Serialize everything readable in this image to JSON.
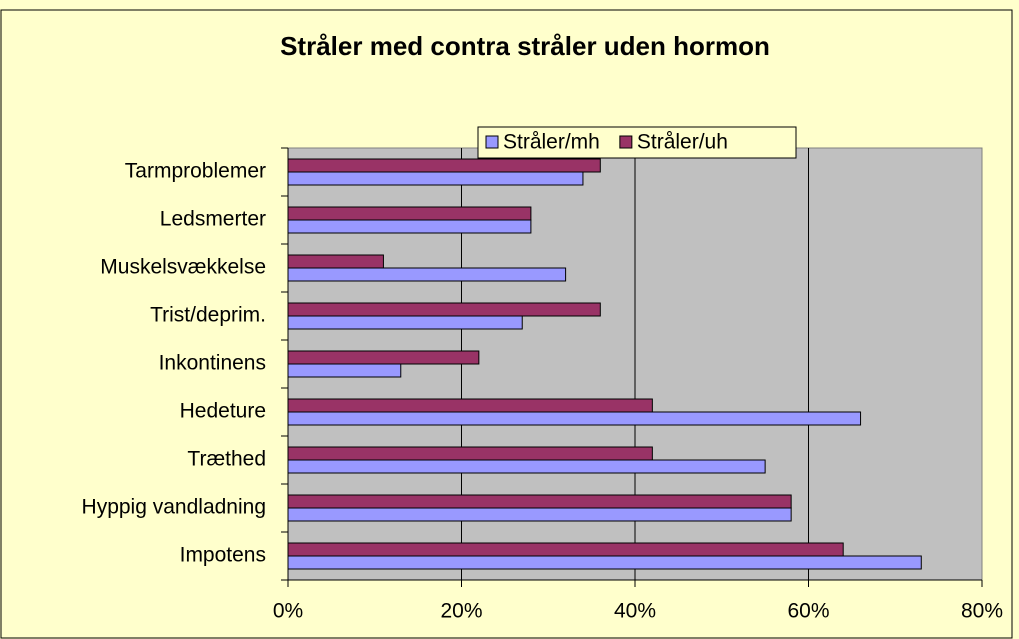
{
  "chart_data": {
    "type": "bar",
    "orientation": "horizontal",
    "title": "Stråler med contra stråler uden hormon",
    "categories": [
      "Tarmproblemer",
      "Ledsmerter",
      "Muskelsvækkelse",
      "Trist/deprim.",
      "Inkontinens",
      "Hedeture",
      "Træthed",
      "Hyppig vandladning",
      "Impotens"
    ],
    "series": [
      {
        "name": "Stråler/mh",
        "color": "#9999ff",
        "values": [
          34,
          28,
          32,
          27,
          13,
          66,
          55,
          58,
          73
        ]
      },
      {
        "name": "Stråler/uh",
        "color": "#993366",
        "values": [
          36,
          28,
          11,
          36,
          22,
          42,
          42,
          58,
          64
        ]
      }
    ],
    "xlim": [
      0,
      80
    ],
    "xticks": [
      {
        "value": 0,
        "label": "0%"
      },
      {
        "value": 20,
        "label": "20%"
      },
      {
        "value": 40,
        "label": "40%"
      },
      {
        "value": 60,
        "label": "60%"
      },
      {
        "value": 80,
        "label": "80%"
      }
    ],
    "grid": true,
    "legend": "top"
  }
}
